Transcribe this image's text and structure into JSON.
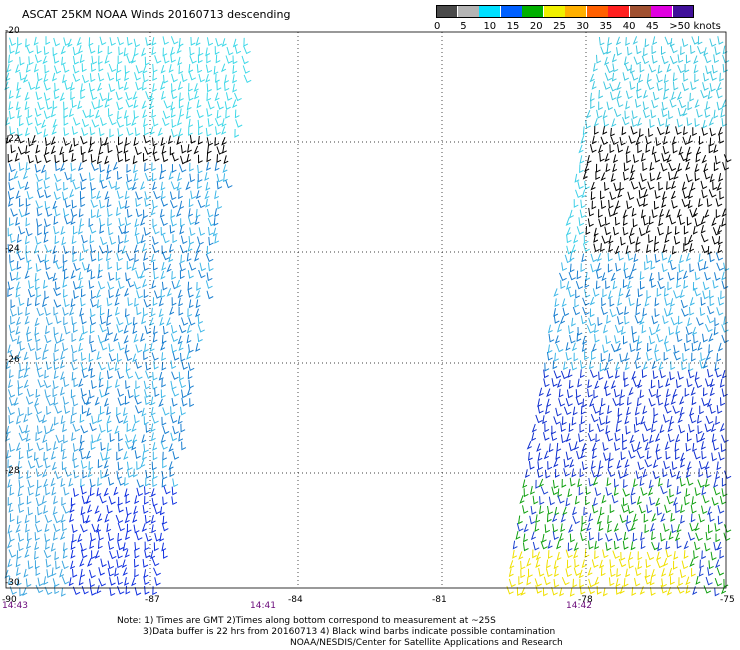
{
  "title": "ASCAT 25KM NOAA Winds 20160713 descending",
  "legend": {
    "colors": [
      "#4a4a4a",
      "#b4b4b4",
      "#00e0ff",
      "#0060ff",
      "#00b000",
      "#f0f000",
      "#ffb000",
      "#ff6000",
      "#ff2020",
      "#a05030",
      "#e000e0",
      "#40109a"
    ],
    "labels": [
      "0",
      "5",
      "10",
      "15",
      "20",
      "25",
      "30",
      "35",
      "40",
      "45",
      ">50 knots"
    ]
  },
  "map": {
    "lat_labels": [
      "-20",
      "-22",
      "-24",
      "-26",
      "-28",
      "-30"
    ],
    "lon_labels": [
      "-90",
      "-87",
      "-84",
      "-81",
      "-78",
      "-75"
    ],
    "time_labels": [
      "14:43",
      "14:41",
      "14:42"
    ]
  },
  "notes": {
    "line1": "Note: 1) Times are GMT 2)Times along bottom correspond to measurement at ~25S",
    "line2": "3)Data buffer is 22 hrs from 20160713 4) Black wind barbs indicate possible contamination",
    "line3": "NOAA/NESDIS/Center for Satellite Applications and Research"
  }
}
